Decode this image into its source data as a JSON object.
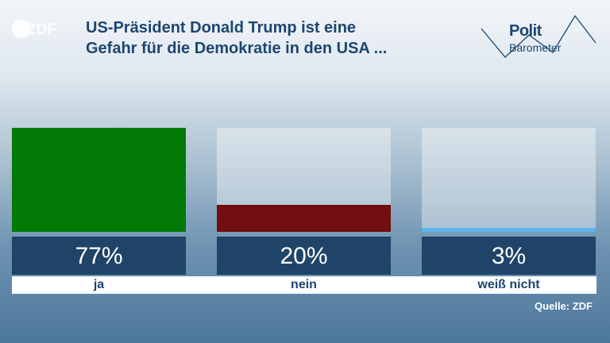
{
  "brand": {
    "logo_text": "ZDF",
    "polit": "Polit",
    "barometer": "Barometer"
  },
  "title_lines": [
    "US-Präsident Donald Trump ist eine",
    "Gefahr für die Demokratie in den USA ..."
  ],
  "source": "Quelle: ZDF",
  "colors": {
    "ja": "#017a06",
    "nein": "#710f10",
    "weiss_nicht": "#5bb6ee",
    "title": "#1e4670",
    "value_box": "#1f4468"
  },
  "chart_data": {
    "type": "bar",
    "title": "US-Präsident Donald Trump ist eine Gefahr für die Demokratie in den USA ...",
    "categories": [
      "ja",
      "nein",
      "weiß nicht"
    ],
    "values": [
      77,
      20,
      3
    ],
    "value_labels": [
      "77%",
      "20%",
      "3%"
    ],
    "unit": "%",
    "ylim": [
      0,
      77
    ],
    "grid": false,
    "legend": "none"
  }
}
